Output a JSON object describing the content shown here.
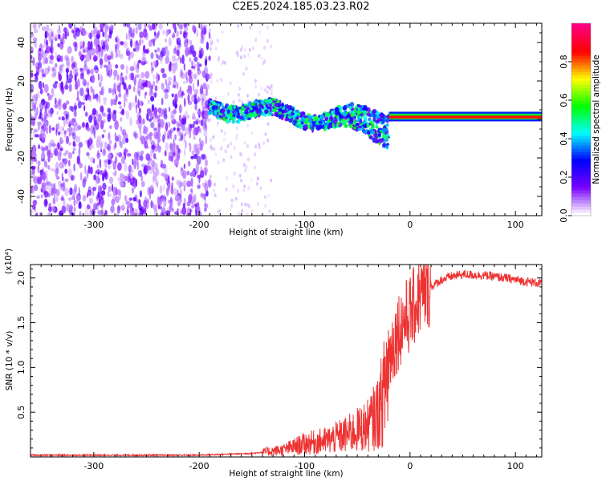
{
  "title": "C2E5.2024.185.03.23.R02",
  "chart_data": [
    {
      "type": "heatmap",
      "xlabel": "Height of straight line (km)",
      "ylabel": "Frequency (Hz)",
      "xlim": [
        -360,
        125
      ],
      "ylim": [
        -50,
        50
      ],
      "xticks": [
        -300,
        -200,
        -100,
        0,
        100
      ],
      "yticks": [
        -40,
        -20,
        0,
        20,
        40
      ],
      "colorbar": {
        "label": "Normalized spectral amplitude",
        "range": [
          0,
          1
        ],
        "ticks": [
          "0.0",
          "0.2",
          "0.4",
          "0.6",
          "0.8"
        ],
        "colors": [
          "#ffffff",
          "#7700ff",
          "#0000ff",
          "#00ffff",
          "#00ff00",
          "#ffff00",
          "#ff0000",
          "#ff0080"
        ]
      },
      "regions": [
        {
          "x": [
            -360,
            -190
          ],
          "y": [
            -50,
            50
          ],
          "amplitude": 0.1,
          "note": "broadband noise"
        },
        {
          "x": [
            -190,
            -20
          ],
          "y": [
            -15,
            12
          ],
          "amplitude": 0.45
        },
        {
          "x": [
            -20,
            125
          ],
          "y": [
            0.5,
            2
          ],
          "amplitude": 0.85
        }
      ]
    },
    {
      "type": "line",
      "xlabel": "Height of straight line (km)",
      "ylabel": "SNR (10 * v/v)",
      "exponent_label": "(x10⁴)",
      "xlim": [
        -360,
        125
      ],
      "ylim": [
        0,
        2.15
      ],
      "xticks": [
        -300,
        -200,
        -100,
        0,
        100
      ],
      "yticks": [
        0.5,
        1.0,
        1.5,
        2.0
      ],
      "line_color": "#ee3333",
      "series": [
        {
          "x": [
            -360,
            -300,
            -200,
            -150,
            -120,
            -100,
            -80,
            -60,
            -40,
            -30,
            -25,
            -20,
            -15,
            -10,
            0,
            10,
            20,
            30,
            40,
            50,
            70,
            90,
            110,
            125
          ],
          "y": [
            0.02,
            0.02,
            0.02,
            0.04,
            0.08,
            0.15,
            0.18,
            0.25,
            0.35,
            0.5,
            0.7,
            1.1,
            1.3,
            1.45,
            1.6,
            1.8,
            1.9,
            1.98,
            2.02,
            2.04,
            2.03,
            2.0,
            1.96,
            1.94
          ]
        }
      ]
    }
  ]
}
